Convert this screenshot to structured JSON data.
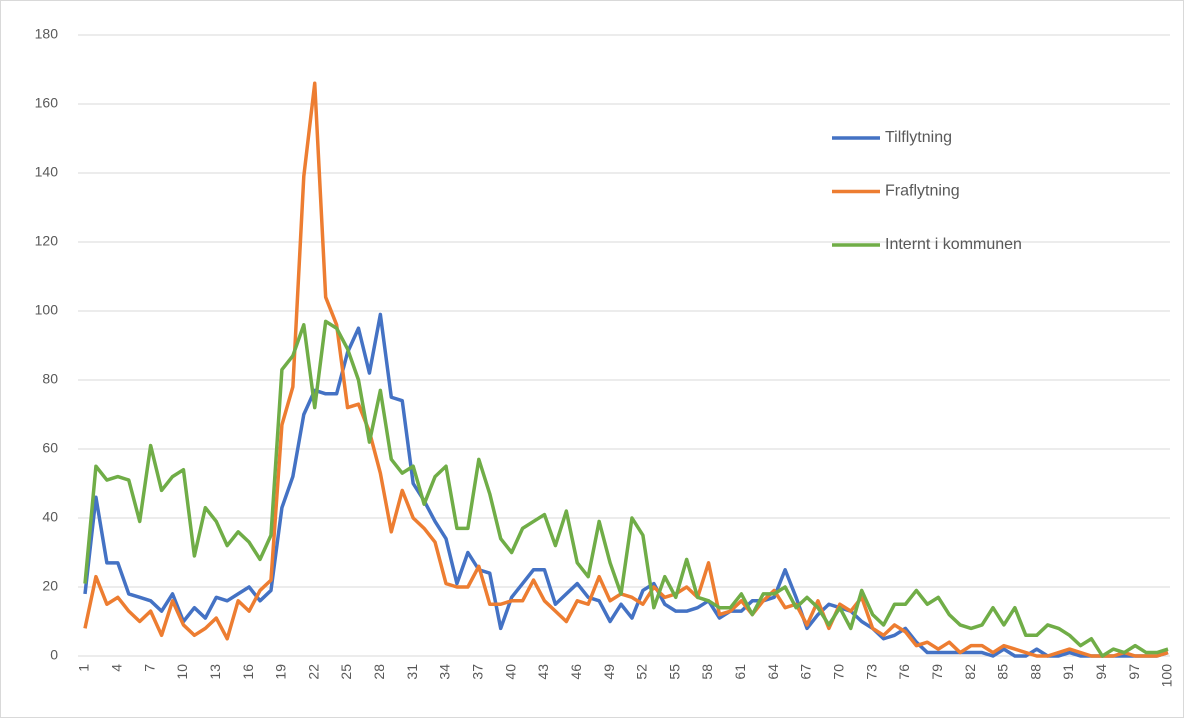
{
  "chart_data": {
    "type": "line",
    "categories": [
      1,
      null,
      null,
      4,
      null,
      null,
      7,
      null,
      null,
      10,
      null,
      null,
      13,
      null,
      null,
      16,
      null,
      null,
      19,
      null,
      null,
      22,
      null,
      null,
      25,
      null,
      null,
      28,
      null,
      null,
      31,
      null,
      null,
      34,
      null,
      null,
      37,
      null,
      null,
      40,
      null,
      null,
      43,
      null,
      null,
      46,
      null,
      null,
      49,
      null,
      null,
      52,
      null,
      null,
      55,
      null,
      null,
      58,
      null,
      null,
      61,
      null,
      null,
      64,
      null,
      null,
      67,
      null,
      null,
      70,
      null,
      null,
      73,
      null,
      null,
      76,
      null,
      null,
      79,
      null,
      null,
      82,
      null,
      null,
      85,
      null,
      null,
      88,
      null,
      null,
      91,
      null,
      null,
      94,
      null,
      null,
      97,
      null,
      null,
      100
    ],
    "series": [
      {
        "name": "Tilflytning",
        "color": "#4472c4",
        "values": [
          18,
          46,
          27,
          27,
          18,
          17,
          16,
          13,
          18,
          10,
          14,
          11,
          17,
          16,
          18,
          20,
          16,
          19,
          43,
          52,
          70,
          77,
          76,
          76,
          88,
          95,
          82,
          99,
          75,
          74,
          50,
          45,
          39,
          34,
          21,
          30,
          25,
          24,
          8,
          17,
          21,
          25,
          25,
          15,
          18,
          21,
          17,
          16,
          10,
          15,
          11,
          19,
          21,
          15,
          13,
          13,
          14,
          16,
          11,
          13,
          13,
          16,
          16,
          17,
          25,
          17,
          8,
          12,
          15,
          14,
          13,
          10,
          8,
          5,
          6,
          8,
          4,
          1,
          1,
          1,
          1,
          1,
          1,
          0,
          2,
          0,
          0,
          2,
          0,
          0,
          1,
          0,
          0,
          0,
          0,
          0,
          0,
          0,
          0,
          1
        ]
      },
      {
        "name": "Fraflytning",
        "color": "#ed7d31",
        "values": [
          8,
          23,
          15,
          17,
          13,
          10,
          13,
          6,
          16,
          9,
          6,
          8,
          11,
          5,
          16,
          13,
          19,
          22,
          67,
          78,
          139,
          166,
          104,
          96,
          72,
          73,
          65,
          53,
          36,
          48,
          40,
          37,
          33,
          21,
          20,
          20,
          26,
          15,
          15,
          16,
          16,
          22,
          16,
          13,
          10,
          16,
          15,
          23,
          16,
          18,
          17,
          15,
          20,
          17,
          18,
          20,
          17,
          27,
          12,
          13,
          16,
          12,
          16,
          19,
          14,
          15,
          9,
          16,
          8,
          15,
          13,
          17,
          8,
          6,
          9,
          7,
          3,
          4,
          2,
          4,
          1,
          3,
          3,
          1,
          3,
          2,
          1,
          0,
          0,
          1,
          2,
          1,
          0,
          0,
          0,
          1,
          0,
          0,
          0,
          1
        ]
      },
      {
        "name": "Internt i kommunen",
        "color": "#70ad47",
        "values": [
          21,
          55,
          51,
          52,
          51,
          39,
          61,
          48,
          52,
          54,
          29,
          43,
          39,
          32,
          36,
          33,
          28,
          35,
          83,
          87,
          96,
          72,
          97,
          95,
          89,
          80,
          62,
          77,
          57,
          53,
          55,
          44,
          52,
          55,
          37,
          37,
          57,
          47,
          34,
          30,
          37,
          39,
          41,
          32,
          42,
          27,
          23,
          39,
          27,
          18,
          40,
          35,
          14,
          23,
          17,
          28,
          17,
          16,
          14,
          14,
          18,
          12,
          18,
          18,
          20,
          14,
          17,
          14,
          9,
          14,
          8,
          19,
          12,
          9,
          15,
          15,
          19,
          15,
          17,
          12,
          9,
          8,
          9,
          14,
          9,
          14,
          6,
          6,
          9,
          8,
          6,
          3,
          5,
          0,
          2,
          1,
          3,
          1,
          1,
          2
        ]
      }
    ],
    "ylim": [
      0,
      180
    ],
    "yticks": [
      0,
      20,
      40,
      60,
      80,
      100,
      120,
      140,
      160,
      180
    ],
    "grid": true,
    "legend": "upper right"
  }
}
